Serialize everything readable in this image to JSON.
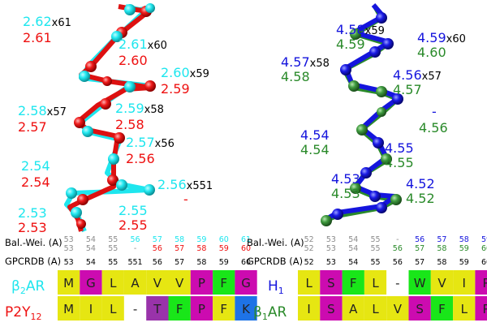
{
  "colors": {
    "cyan": "#1ee6ee",
    "red": "#ee1111",
    "blue": "#1515dd",
    "green": "#2a8a2a",
    "grey": "#8c8c8c",
    "yellow": "#e6e612",
    "magenta": "#cc0bb0",
    "purple": "#9933aa",
    "brightgreen": "#19e619",
    "blue_cell": "#1e73e6",
    "white": "#ffffff"
  },
  "left_labels": [
    {
      "top": "2.62",
      "suffix": "x61",
      "bottom": "2.61"
    },
    {
      "top": "2.61",
      "suffix": "x60",
      "bottom": "2.60"
    },
    {
      "top": "2.60",
      "suffix": "x59",
      "bottom": "2.59"
    },
    {
      "top": "2.58",
      "suffix": "x57",
      "bottom": "2.57"
    },
    {
      "top": "2.59",
      "suffix": "x58",
      "bottom": "2.58"
    },
    {
      "top": "2.57",
      "suffix": "x56",
      "bottom": "2.56"
    },
    {
      "top": "2.54",
      "suffix": "",
      "bottom": "2.54"
    },
    {
      "top": "2.56",
      "suffix": "x551",
      "bottom": "-"
    },
    {
      "top": "2.53",
      "suffix": "",
      "bottom": "2.53"
    },
    {
      "top": "2.55",
      "suffix": "",
      "bottom": "2.55"
    }
  ],
  "right_labels": [
    {
      "top": "4.58",
      "suffix": "x59",
      "bottom": "4.59"
    },
    {
      "top": "4.59",
      "suffix": "x60",
      "bottom": "4.60"
    },
    {
      "top": "4.57",
      "suffix": "x58",
      "bottom": "4.58"
    },
    {
      "top": "4.56",
      "suffix": "x57",
      "bottom": "4.57"
    },
    {
      "top": "-",
      "suffix": "",
      "bottom": "4.56"
    },
    {
      "top": "4.54",
      "suffix": "",
      "bottom": "4.54"
    },
    {
      "top": "4.55",
      "suffix": "",
      "bottom": "4.55"
    },
    {
      "top": "4.53",
      "suffix": "",
      "bottom": "4.53"
    },
    {
      "top": "4.52",
      "suffix": "",
      "bottom": "4.52"
    }
  ],
  "left_table": {
    "balwei_label": "Bal.-Wei. (A)",
    "gpcrdb_label": "GPCRDB (A)",
    "balwei_top": [
      "53",
      "54",
      "55",
      "56",
      "57",
      "58",
      "59",
      "60",
      "61"
    ],
    "balwei_bottom": [
      "53",
      "54",
      "55",
      "-",
      "56",
      "57",
      "58",
      "59",
      "60"
    ],
    "gpcrdb": [
      "53",
      "54",
      "55",
      "551",
      "56",
      "57",
      "58",
      "59",
      "60"
    ],
    "row1_name_main": "β",
    "row1_name_sub": "2",
    "row1_name_tail": "AR",
    "row1": [
      "M",
      "G",
      "L",
      "A",
      "V",
      "V",
      "P",
      "F",
      "G"
    ],
    "row2_name_main": "P2Y",
    "row2_name_sub": "12",
    "row2": [
      "M",
      "I",
      "L",
      "-",
      "T",
      "F",
      "P",
      "F",
      "K"
    ]
  },
  "right_table": {
    "balwei_label": "Bal.-Wei. (A)",
    "gpcrdb_label": "GPCRDB (A)",
    "balwei_top": [
      "52",
      "53",
      "54",
      "55",
      "-",
      "56",
      "57",
      "58",
      "59"
    ],
    "balwei_bottom": [
      "52",
      "53",
      "54",
      "55",
      "56",
      "57",
      "58",
      "59",
      "60"
    ],
    "gpcrdb": [
      "52",
      "53",
      "54",
      "55",
      "56",
      "57",
      "58",
      "59",
      "60"
    ],
    "row1_name_main": "H",
    "row1_name_sub": "1",
    "row1": [
      "L",
      "S",
      "F",
      "L",
      "-",
      "W",
      "V",
      "I",
      "P"
    ],
    "row2_name_main": "β",
    "row2_name_sub": "1",
    "row2_name_tail": "AR",
    "row2": [
      "I",
      "S",
      "A",
      "L",
      "V",
      "S",
      "F",
      "L",
      "P"
    ]
  }
}
